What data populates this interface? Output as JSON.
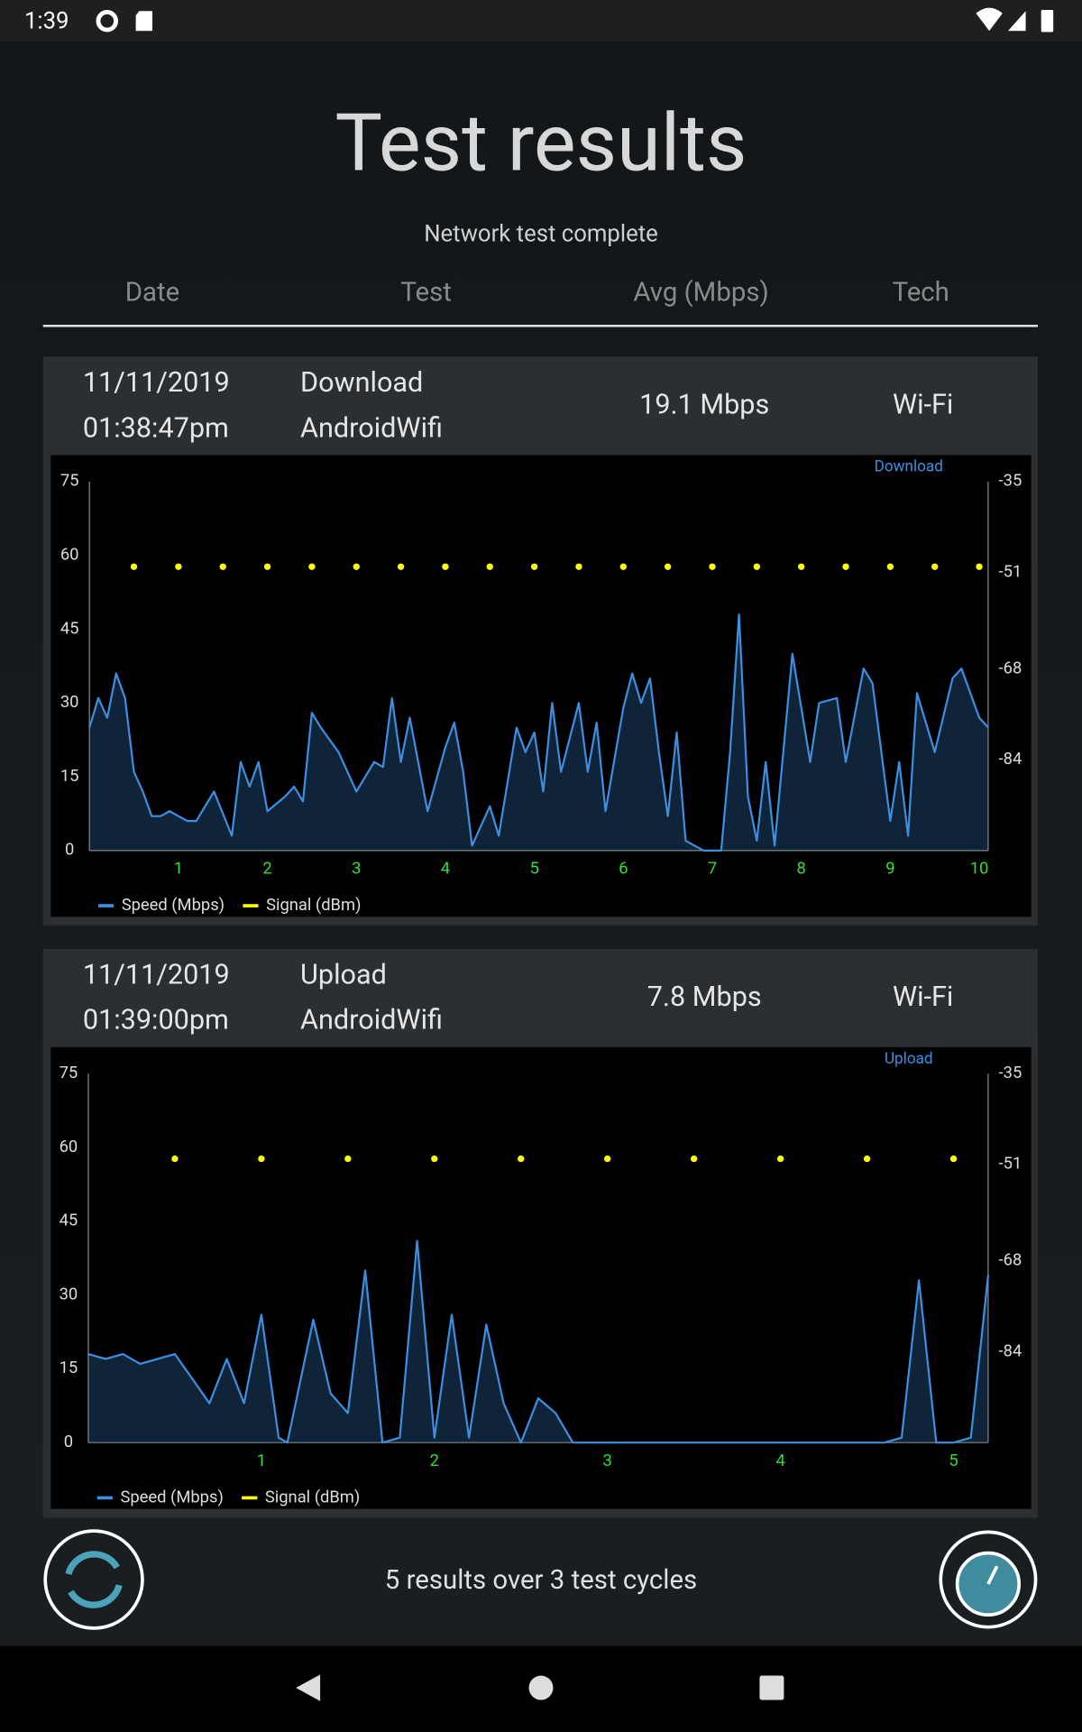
{
  "status_bar": {
    "time": "1:39"
  },
  "header": {
    "title": "Test results",
    "subtitle": "Network test complete"
  },
  "table": {
    "columns": [
      "Date",
      "Test",
      "Avg (Mbps)",
      "Tech"
    ]
  },
  "results": [
    {
      "date": "11/11/2019",
      "time": "01:38:47pm",
      "test": "Download",
      "network": "AndroidWifi",
      "avg": "19.1 Mbps",
      "tech": "Wi-Fi",
      "chart_data": {
        "type": "line",
        "label": "Download",
        "xlim": [
          0,
          10.1
        ],
        "xticks": [
          1,
          2,
          3,
          4,
          5,
          6,
          7,
          8,
          9,
          10
        ],
        "ylim": [
          0,
          75
        ],
        "yticks": [
          0,
          15,
          30,
          45,
          60,
          75
        ],
        "y2lim": [
          -100,
          -35
        ],
        "y2ticks": [
          -35,
          -51,
          -68,
          -84
        ],
        "series": [
          {
            "name": "Speed (Mbps)",
            "color": "#3d8fe0",
            "area": true,
            "x": [
              0,
              0.1,
              0.2,
              0.3,
              0.4,
              0.5,
              0.6,
              0.7,
              0.8,
              0.9,
              1.0,
              1.1,
              1.2,
              1.4,
              1.6,
              1.7,
              1.8,
              1.9,
              2.0,
              2.2,
              2.3,
              2.4,
              2.5,
              2.6,
              2.8,
              3.0,
              3.2,
              3.3,
              3.4,
              3.5,
              3.6,
              3.8,
              4.0,
              4.1,
              4.2,
              4.3,
              4.5,
              4.6,
              4.8,
              4.9,
              5.0,
              5.1,
              5.2,
              5.3,
              5.5,
              5.6,
              5.7,
              5.8,
              6.0,
              6.1,
              6.2,
              6.3,
              6.4,
              6.5,
              6.6,
              6.7,
              6.8,
              6.9,
              7.0,
              7.1,
              7.2,
              7.3,
              7.4,
              7.5,
              7.6,
              7.7,
              7.9,
              8.0,
              8.1,
              8.2,
              8.4,
              8.5,
              8.7,
              8.8,
              9.0,
              9.1,
              9.2,
              9.3,
              9.5,
              9.7,
              9.8,
              10.0,
              10.1
            ],
            "values": [
              25,
              31,
              27,
              36,
              31,
              16,
              12,
              7,
              7,
              8,
              7,
              6,
              6,
              12,
              3,
              18,
              13,
              18,
              8,
              11,
              13,
              10,
              28,
              25,
              20,
              12,
              18,
              17,
              31,
              18,
              27,
              8,
              21,
              26,
              16,
              1,
              9,
              3,
              25,
              20,
              24,
              12,
              30,
              16,
              30,
              16,
              26,
              8,
              29,
              36,
              30,
              35,
              20,
              7,
              24,
              2,
              1,
              0,
              0,
              0,
              20,
              48,
              11,
              2,
              18,
              1,
              40,
              29,
              18,
              30,
              31,
              18,
              37,
              34,
              6,
              18,
              3,
              32,
              20,
              35,
              37,
              27,
              25
            ]
          },
          {
            "name": "Signal (dBm)",
            "color": "#ffff00",
            "axis": "y2",
            "marker": "dot",
            "x": [
              0.5,
              1,
              1.5,
              2,
              2.5,
              3,
              3.5,
              4,
              4.5,
              5,
              5.5,
              6,
              6.5,
              7,
              7.5,
              8,
              8.5,
              9,
              9.5,
              10
            ],
            "values": [
              -50,
              -50,
              -50,
              -50,
              -50,
              -50,
              -50,
              -50,
              -50,
              -50,
              -50,
              -50,
              -50,
              -50,
              -50,
              -50,
              -50,
              -50,
              -50,
              -50
            ]
          }
        ]
      }
    },
    {
      "date": "11/11/2019",
      "time": "01:39:00pm",
      "test": "Upload",
      "network": "AndroidWifi",
      "avg": "7.8 Mbps",
      "tech": "Wi-Fi",
      "chart_data": {
        "type": "line",
        "label": "Upload",
        "xlim": [
          0,
          5.2
        ],
        "xticks": [
          1,
          2,
          3,
          4,
          5
        ],
        "ylim": [
          0,
          75
        ],
        "yticks": [
          0,
          15,
          30,
          45,
          60,
          75
        ],
        "y2lim": [
          -100,
          -35
        ],
        "y2ticks": [
          -35,
          -51,
          -68,
          -84
        ],
        "series": [
          {
            "name": "Speed (Mbps)",
            "color": "#3d8fe0",
            "area": true,
            "x": [
              0,
              0.1,
              0.2,
              0.3,
              0.4,
              0.5,
              0.6,
              0.7,
              0.8,
              0.9,
              1.0,
              1.1,
              1.15,
              1.3,
              1.4,
              1.5,
              1.6,
              1.7,
              1.8,
              1.9,
              2.0,
              2.1,
              2.2,
              2.3,
              2.4,
              2.5,
              2.6,
              2.7,
              2.8,
              3.0,
              4.0,
              4.6,
              4.7,
              4.8,
              4.9,
              5.0,
              5.1,
              5.2
            ],
            "values": [
              18,
              17,
              18,
              16,
              17,
              18,
              13,
              8,
              17,
              8,
              26,
              1,
              0,
              25,
              10,
              6,
              35,
              0,
              1,
              41,
              1,
              26,
              1,
              24,
              8,
              0,
              9,
              6,
              0,
              0,
              0,
              0,
              1,
              33,
              0,
              0,
              1,
              34
            ]
          },
          {
            "name": "Signal (dBm)",
            "color": "#ffff00",
            "axis": "y2",
            "marker": "dot",
            "x": [
              0.5,
              1,
              1.5,
              2,
              2.5,
              3,
              3.5,
              4,
              4.5,
              5
            ],
            "values": [
              -50,
              -50,
              -50,
              -50,
              -50,
              -50,
              -50,
              -50,
              -50,
              -50
            ]
          }
        ]
      }
    }
  ],
  "footer": {
    "summary": "5 results over 3 test cycles"
  }
}
